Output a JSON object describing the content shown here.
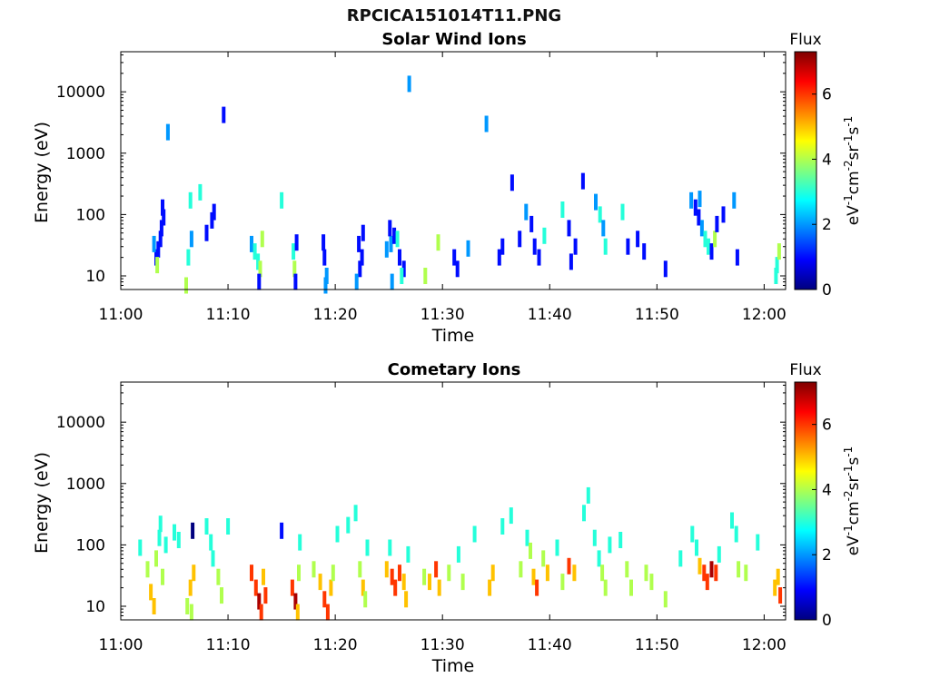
{
  "figure_title": "RPCICA151014T11.PNG",
  "colors": {
    "colormap": [
      "#00007f",
      "#0000ff",
      "#007fff",
      "#00ffff",
      "#7fff7f",
      "#ffff00",
      "#ff7f00",
      "#ff0000",
      "#7f0000"
    ],
    "axis": "#000000"
  },
  "chart_data": [
    {
      "type": "heatmap",
      "title": "Solar Wind Ions",
      "xlabel": "Time",
      "ylabel": "Energy (eV)",
      "x_ticks": [
        "11:00",
        "11:10",
        "11:20",
        "11:30",
        "11:40",
        "11:50",
        "12:00"
      ],
      "x_range_min": [
        0,
        62
      ],
      "y_scale": "log",
      "y_ticks": [
        "10",
        "100",
        "1000",
        "10000"
      ],
      "ylim": [
        6,
        45000
      ],
      "colorbar": {
        "label": "Flux",
        "unit": "eV-1cm-2sr-1s-1",
        "ticks": [
          "0",
          "2",
          "4",
          "6"
        ],
        "range": [
          0,
          7.3
        ]
      },
      "points": [
        [
          3.5,
          27,
          1
        ],
        [
          3.7,
          40,
          1
        ],
        [
          3.8,
          60,
          1
        ],
        [
          4.0,
          90,
          1
        ],
        [
          3.9,
          130,
          1
        ],
        [
          3.3,
          20,
          1
        ],
        [
          3.1,
          33,
          2
        ],
        [
          3.4,
          15,
          4
        ],
        [
          4.4,
          2200,
          2
        ],
        [
          6.3,
          20,
          3
        ],
        [
          6.1,
          7,
          4
        ],
        [
          6.6,
          40,
          2
        ],
        [
          6.5,
          170,
          3
        ],
        [
          7.4,
          230,
          3
        ],
        [
          8.0,
          50,
          1
        ],
        [
          8.5,
          80,
          1
        ],
        [
          8.7,
          110,
          1
        ],
        [
          9.6,
          4200,
          1
        ],
        [
          12.2,
          33,
          2
        ],
        [
          12.5,
          25,
          3
        ],
        [
          12.8,
          17,
          3
        ],
        [
          13.0,
          13,
          4
        ],
        [
          12.9,
          8,
          1
        ],
        [
          13.2,
          40,
          4
        ],
        [
          15.0,
          170,
          3
        ],
        [
          16.1,
          25,
          3
        ],
        [
          16.2,
          13,
          4
        ],
        [
          16.3,
          8,
          1
        ],
        [
          16.4,
          35,
          1
        ],
        [
          19.0,
          20,
          1
        ],
        [
          19.2,
          10,
          2
        ],
        [
          19.1,
          7,
          2
        ],
        [
          18.9,
          35,
          1
        ],
        [
          22.2,
          33,
          1
        ],
        [
          22.5,
          20,
          1
        ],
        [
          22.3,
          13,
          1
        ],
        [
          22.6,
          50,
          1
        ],
        [
          22.0,
          8,
          2
        ],
        [
          24.8,
          27,
          2
        ],
        [
          25.2,
          33,
          2
        ],
        [
          25.5,
          45,
          1
        ],
        [
          25.8,
          40,
          3
        ],
        [
          26.0,
          20,
          1
        ],
        [
          26.4,
          13,
          1
        ],
        [
          25.1,
          60,
          1
        ],
        [
          25.3,
          8,
          2
        ],
        [
          26.2,
          10,
          3
        ],
        [
          26.9,
          13500,
          2
        ],
        [
          28.4,
          10,
          4
        ],
        [
          29.6,
          35,
          4
        ],
        [
          31.1,
          20,
          1
        ],
        [
          31.4,
          13,
          1
        ],
        [
          32.4,
          28,
          2
        ],
        [
          34.1,
          3000,
          2
        ],
        [
          35.3,
          20,
          1
        ],
        [
          35.6,
          30,
          1
        ],
        [
          36.5,
          330,
          1
        ],
        [
          37.2,
          40,
          1
        ],
        [
          37.8,
          110,
          2
        ],
        [
          38.3,
          70,
          1
        ],
        [
          38.6,
          30,
          1
        ],
        [
          39.0,
          20,
          1
        ],
        [
          39.5,
          45,
          3
        ],
        [
          41.2,
          120,
          3
        ],
        [
          41.8,
          60,
          1
        ],
        [
          42.0,
          17,
          1
        ],
        [
          42.4,
          30,
          1
        ],
        [
          43.1,
          350,
          1
        ],
        [
          44.3,
          160,
          2
        ],
        [
          44.7,
          100,
          3
        ],
        [
          45.0,
          60,
          2
        ],
        [
          45.2,
          30,
          3
        ],
        [
          46.8,
          110,
          3
        ],
        [
          47.3,
          30,
          1
        ],
        [
          48.2,
          40,
          1
        ],
        [
          48.8,
          25,
          1
        ],
        [
          50.8,
          13,
          1
        ],
        [
          53.2,
          170,
          2
        ],
        [
          53.6,
          130,
          1
        ],
        [
          53.9,
          90,
          1
        ],
        [
          54.2,
          60,
          2
        ],
        [
          54.5,
          40,
          3
        ],
        [
          54.8,
          30,
          3
        ],
        [
          55.1,
          25,
          1
        ],
        [
          55.4,
          40,
          4
        ],
        [
          54.0,
          180,
          2
        ],
        [
          55.6,
          70,
          1
        ],
        [
          56.2,
          100,
          1
        ],
        [
          57.2,
          170,
          2
        ],
        [
          57.5,
          20,
          1
        ],
        [
          61.2,
          15,
          3
        ],
        [
          61.4,
          25,
          4
        ],
        [
          61.1,
          10,
          3
        ]
      ]
    },
    {
      "type": "heatmap",
      "title": "Cometary Ions",
      "xlabel": "Time",
      "ylabel": "Energy (eV)",
      "x_ticks": [
        "11:00",
        "11:10",
        "11:20",
        "11:30",
        "11:40",
        "11:50",
        "12:00"
      ],
      "x_range_min": [
        0,
        62
      ],
      "y_scale": "log",
      "y_ticks": [
        "10",
        "100",
        "1000",
        "10000"
      ],
      "ylim": [
        6,
        45000
      ],
      "colorbar": {
        "label": "Flux",
        "unit": "eV-1cm-2sr-1s-1",
        "ticks": [
          "0",
          "2",
          "4",
          "6"
        ],
        "range": [
          0,
          7.3
        ]
      },
      "points": [
        [
          1.8,
          90,
          3
        ],
        [
          2.5,
          40,
          4
        ],
        [
          2.8,
          17,
          5
        ],
        [
          3.1,
          10,
          5
        ],
        [
          3.3,
          60,
          4
        ],
        [
          3.6,
          130,
          3
        ],
        [
          3.9,
          30,
          4
        ],
        [
          4.2,
          100,
          3
        ],
        [
          3.7,
          220,
          3
        ],
        [
          5.0,
          160,
          3
        ],
        [
          5.4,
          120,
          3
        ],
        [
          6.2,
          10,
          4
        ],
        [
          6.5,
          20,
          5
        ],
        [
          6.8,
          35,
          5
        ],
        [
          6.6,
          8,
          4
        ],
        [
          6.7,
          170,
          0
        ],
        [
          8.0,
          200,
          3
        ],
        [
          8.4,
          110,
          3
        ],
        [
          8.6,
          60,
          3
        ],
        [
          9.1,
          30,
          4
        ],
        [
          9.4,
          15,
          4
        ],
        [
          10.0,
          200,
          3
        ],
        [
          12.2,
          35,
          6
        ],
        [
          12.6,
          20,
          6
        ],
        [
          12.9,
          12,
          7
        ],
        [
          13.1,
          8,
          6
        ],
        [
          13.3,
          30,
          5
        ],
        [
          13.5,
          15,
          6
        ],
        [
          15.0,
          170,
          1
        ],
        [
          16.0,
          20,
          6
        ],
        [
          16.3,
          12,
          7
        ],
        [
          16.5,
          8,
          5
        ],
        [
          16.6,
          35,
          4
        ],
        [
          16.7,
          110,
          3
        ],
        [
          18.0,
          40,
          4
        ],
        [
          18.6,
          25,
          5
        ],
        [
          19.0,
          13,
          6
        ],
        [
          19.3,
          8,
          6
        ],
        [
          19.6,
          20,
          5
        ],
        [
          19.8,
          35,
          4
        ],
        [
          20.2,
          150,
          3
        ],
        [
          21.2,
          210,
          3
        ],
        [
          21.9,
          330,
          3
        ],
        [
          22.3,
          40,
          4
        ],
        [
          22.6,
          20,
          5
        ],
        [
          22.8,
          13,
          4
        ],
        [
          23.0,
          90,
          3
        ],
        [
          24.8,
          40,
          5
        ],
        [
          25.3,
          30,
          6
        ],
        [
          25.6,
          20,
          6
        ],
        [
          26.0,
          35,
          6
        ],
        [
          26.4,
          25,
          5
        ],
        [
          26.6,
          13,
          5
        ],
        [
          25.1,
          90,
          3
        ],
        [
          26.8,
          70,
          3
        ],
        [
          28.3,
          30,
          4
        ],
        [
          28.8,
          25,
          5
        ],
        [
          29.4,
          40,
          6
        ],
        [
          29.7,
          20,
          5
        ],
        [
          30.6,
          35,
          4
        ],
        [
          31.5,
          70,
          3
        ],
        [
          31.9,
          25,
          4
        ],
        [
          33.0,
          150,
          3
        ],
        [
          34.4,
          20,
          5
        ],
        [
          34.7,
          35,
          5
        ],
        [
          35.6,
          200,
          3
        ],
        [
          36.4,
          300,
          3
        ],
        [
          37.3,
          40,
          4
        ],
        [
          37.9,
          130,
          3
        ],
        [
          38.2,
          80,
          4
        ],
        [
          38.5,
          30,
          5
        ],
        [
          38.8,
          20,
          6
        ],
        [
          39.4,
          60,
          4
        ],
        [
          39.8,
          35,
          5
        ],
        [
          40.7,
          90,
          3
        ],
        [
          41.2,
          25,
          4
        ],
        [
          41.8,
          45,
          6
        ],
        [
          42.3,
          35,
          5
        ],
        [
          43.2,
          330,
          3
        ],
        [
          43.6,
          640,
          3
        ],
        [
          44.2,
          130,
          3
        ],
        [
          44.6,
          60,
          3
        ],
        [
          44.9,
          35,
          4
        ],
        [
          45.2,
          20,
          4
        ],
        [
          45.6,
          100,
          3
        ],
        [
          46.6,
          120,
          3
        ],
        [
          47.2,
          40,
          4
        ],
        [
          47.6,
          20,
          4
        ],
        [
          49.0,
          35,
          4
        ],
        [
          49.5,
          25,
          4
        ],
        [
          50.8,
          13,
          4
        ],
        [
          52.2,
          60,
          3
        ],
        [
          53.3,
          150,
          3
        ],
        [
          53.7,
          90,
          3
        ],
        [
          54.0,
          45,
          5
        ],
        [
          54.4,
          35,
          6
        ],
        [
          54.7,
          25,
          6
        ],
        [
          55.1,
          40,
          7
        ],
        [
          55.5,
          35,
          6
        ],
        [
          55.8,
          70,
          3
        ],
        [
          57.0,
          250,
          3
        ],
        [
          57.4,
          150,
          3
        ],
        [
          57.6,
          40,
          4
        ],
        [
          58.3,
          35,
          4
        ],
        [
          59.4,
          110,
          3
        ],
        [
          61.0,
          20,
          5
        ],
        [
          61.3,
          30,
          5
        ],
        [
          61.5,
          15,
          6
        ]
      ]
    }
  ]
}
